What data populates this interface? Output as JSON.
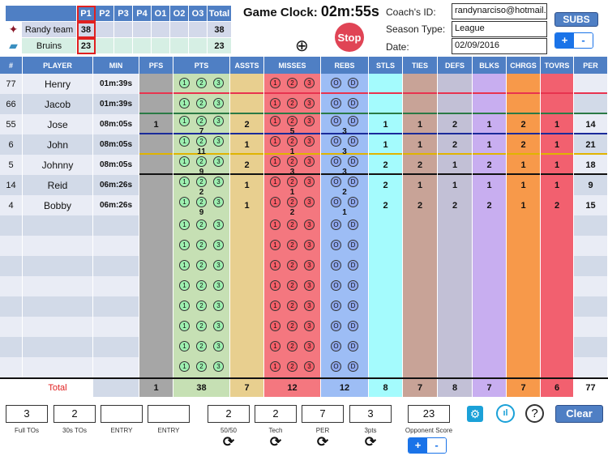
{
  "scoreboard": {
    "periods": [
      "P1",
      "P2",
      "P3",
      "P4",
      "O1",
      "O2",
      "O3",
      "Total"
    ],
    "teams": [
      {
        "name": "Randy team",
        "scores": [
          "38",
          "",
          "",
          "",
          "",
          "",
          "",
          "38"
        ]
      },
      {
        "name": "Bruins",
        "scores": [
          "23",
          "",
          "",
          "",
          "",
          "",
          "",
          "23"
        ]
      }
    ],
    "highlight_period": "P1"
  },
  "clock": {
    "label": "Game Clock:",
    "value": "02m:55s",
    "stop_label": "Stop"
  },
  "info": {
    "coach_label": "Coach's ID:",
    "coach_value": "randynarciso@hotmail....",
    "season_label": "Season Type:",
    "season_value": "League",
    "date_label": "Date:",
    "date_value": "02/09/2016",
    "subs_label": "SUBS",
    "plus": "+",
    "minus": "-"
  },
  "table": {
    "headers": [
      "#",
      "PLAYER",
      "MIN",
      "PFS",
      "PTS",
      "ASSTS",
      "MISSES",
      "REBS",
      "STLS",
      "TIES",
      "DEFS",
      "BLKS",
      "CHRGS",
      "TOVRS",
      "PER"
    ],
    "column_colors": [
      "",
      "",
      "",
      "#a6a6a6",
      "#c6e0b4",
      "#e8cf8f",
      "#f4777f",
      "#9dbdf5",
      "#a4fbfd",
      "#c8a397",
      "#c2c0d6",
      "#c8aef0",
      "#f7994a",
      "#f2606f",
      ""
    ],
    "row_line_colors": [
      "#e8334f",
      "#2a7a45",
      "#1a2a9a",
      "#e0b400",
      "#111111"
    ],
    "pts_buttons": [
      "1",
      "2",
      "3"
    ],
    "reb_buttons": [
      "O",
      "D"
    ],
    "rows": [
      {
        "num": "77",
        "player": "Henry",
        "min": "01m:39s",
        "stats": [
          "",
          "",
          "",
          "",
          "",
          "",
          "",
          "",
          "",
          "",
          "",
          ""
        ]
      },
      {
        "num": "66",
        "player": "Jacob",
        "min": "01m:39s",
        "stats": [
          "",
          "",
          "",
          "",
          "",
          "",
          "",
          "",
          "",
          "",
          "",
          ""
        ]
      },
      {
        "num": "55",
        "player": "Jose",
        "min": "08m:05s",
        "stats": [
          "1",
          "7",
          "2",
          "5",
          "3",
          "1",
          "1",
          "2",
          "1",
          "2",
          "1",
          "14"
        ]
      },
      {
        "num": "6",
        "player": "John",
        "min": "08m:05s",
        "stats": [
          "",
          "11",
          "1",
          "1",
          "3",
          "1",
          "1",
          "2",
          "1",
          "2",
          "1",
          "21"
        ]
      },
      {
        "num": "5",
        "player": "Johnny",
        "min": "08m:05s",
        "stats": [
          "",
          "9",
          "2",
          "3",
          "3",
          "2",
          "2",
          "1",
          "2",
          "1",
          "1",
          "18"
        ]
      },
      {
        "num": "14",
        "player": "Reid",
        "min": "06m:26s",
        "stats": [
          "",
          "2",
          "1",
          "1",
          "2",
          "2",
          "1",
          "1",
          "1",
          "1",
          "1",
          "9"
        ]
      },
      {
        "num": "4",
        "player": "Bobby",
        "min": "06m:26s",
        "stats": [
          "",
          "9",
          "1",
          "2",
          "1",
          "2",
          "2",
          "2",
          "2",
          "1",
          "2",
          "15"
        ]
      },
      {
        "num": "",
        "player": "",
        "min": "",
        "stats": [
          "",
          "",
          "",
          "",
          "",
          "",
          "",
          "",
          "",
          "",
          "",
          ""
        ]
      },
      {
        "num": "",
        "player": "",
        "min": "",
        "stats": [
          "",
          "",
          "",
          "",
          "",
          "",
          "",
          "",
          "",
          "",
          "",
          ""
        ]
      },
      {
        "num": "",
        "player": "",
        "min": "",
        "stats": [
          "",
          "",
          "",
          "",
          "",
          "",
          "",
          "",
          "",
          "",
          "",
          ""
        ]
      },
      {
        "num": "",
        "player": "",
        "min": "",
        "stats": [
          "",
          "",
          "",
          "",
          "",
          "",
          "",
          "",
          "",
          "",
          "",
          ""
        ]
      },
      {
        "num": "",
        "player": "",
        "min": "",
        "stats": [
          "",
          "",
          "",
          "",
          "",
          "",
          "",
          "",
          "",
          "",
          "",
          ""
        ]
      },
      {
        "num": "",
        "player": "",
        "min": "",
        "stats": [
          "",
          "",
          "",
          "",
          "",
          "",
          "",
          "",
          "",
          "",
          "",
          ""
        ]
      },
      {
        "num": "",
        "player": "",
        "min": "",
        "stats": [
          "",
          "",
          "",
          "",
          "",
          "",
          "",
          "",
          "",
          "",
          "",
          ""
        ]
      },
      {
        "num": "",
        "player": "",
        "min": "",
        "stats": [
          "",
          "",
          "",
          "",
          "",
          "",
          "",
          "",
          "",
          "",
          "",
          ""
        ]
      }
    ],
    "total": {
      "label": "Total",
      "stats": [
        "1",
        "38",
        "7",
        "12",
        "12",
        "8",
        "7",
        "8",
        "7",
        "7",
        "6",
        "77"
      ]
    }
  },
  "bottom": {
    "fields": [
      {
        "value": "3",
        "label": "Full TOs"
      },
      {
        "value": "2",
        "label": "30s TOs"
      },
      {
        "value": "",
        "label": "ENTRY"
      },
      {
        "value": "",
        "label": "ENTRY"
      },
      {
        "value": "2",
        "label": "50/50"
      },
      {
        "value": "2",
        "label": "Tech"
      },
      {
        "value": "7",
        "label": "PER"
      },
      {
        "value": "3",
        "label": "3pts"
      },
      {
        "value": "23",
        "label": "Opponent Score"
      }
    ],
    "clear_label": "Clear",
    "plus": "+",
    "minus": "-"
  }
}
